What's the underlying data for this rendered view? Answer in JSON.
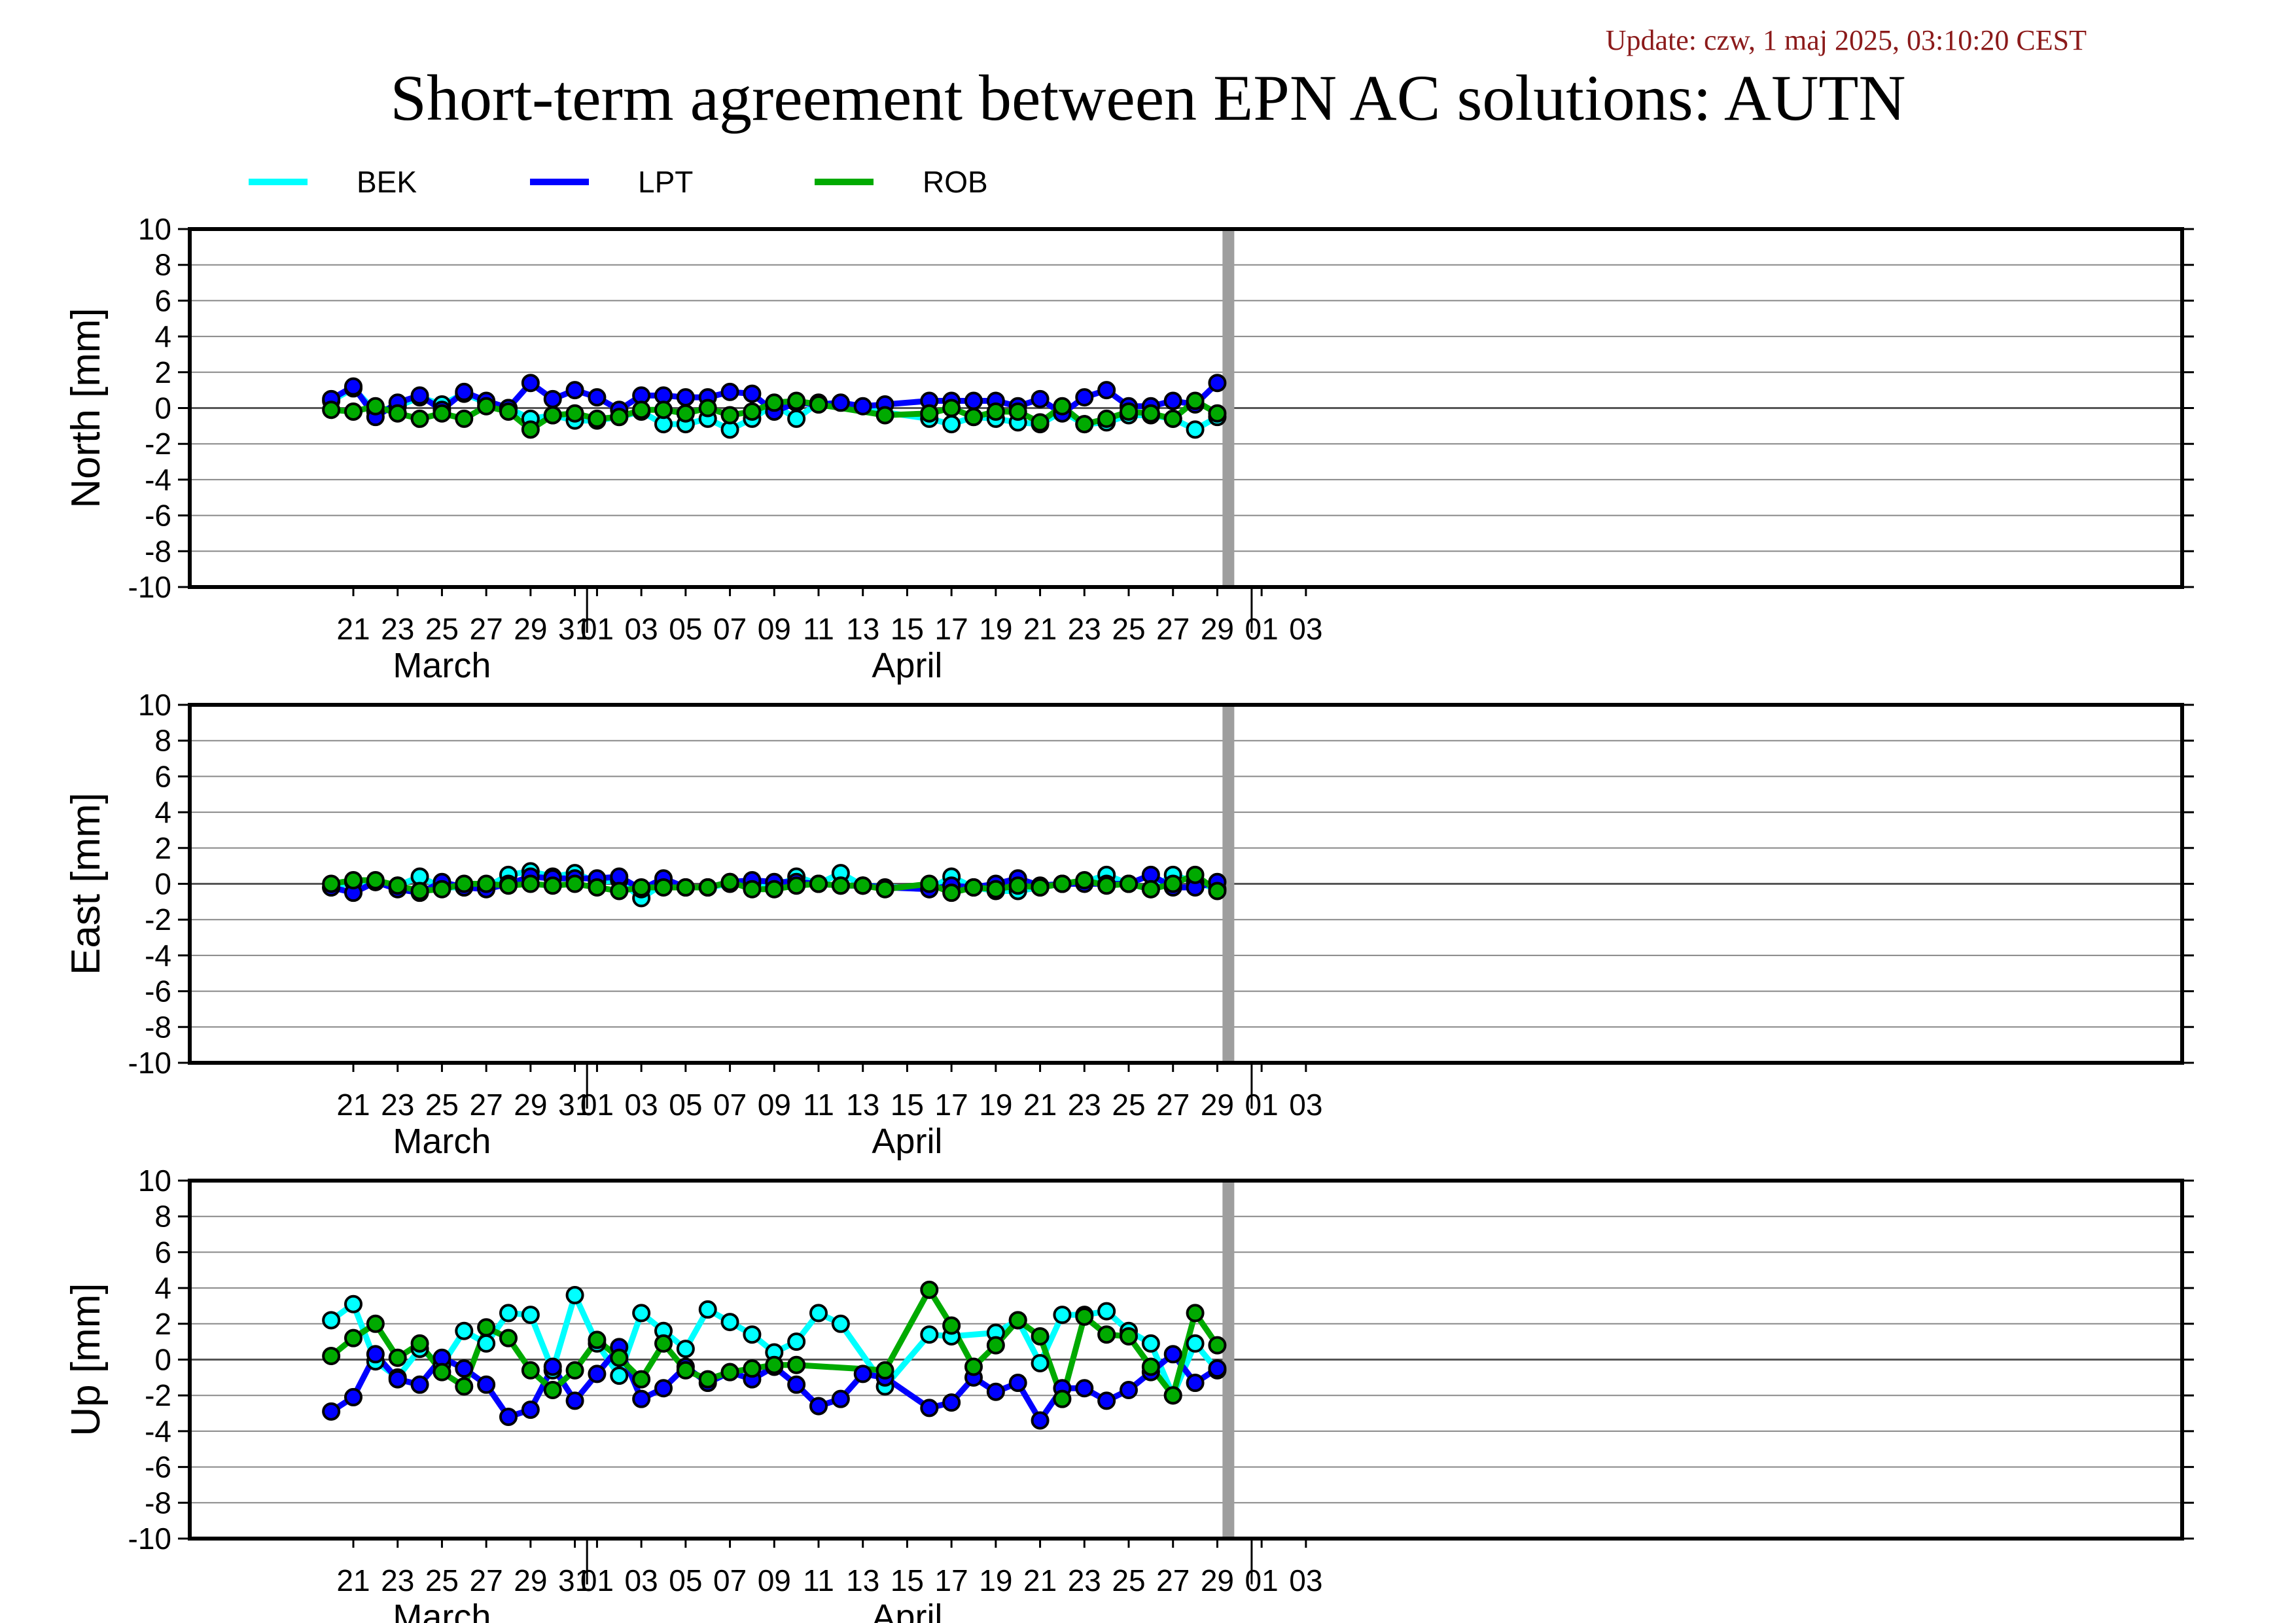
{
  "update_text": "Update: czw, 1 maj 2025, 03:10:20 CEST",
  "title": "Short-term agreement between EPN AC solutions: AUTN",
  "chart_data": {
    "type": "line",
    "legend": [
      {
        "name": "BEK",
        "color": "#00ffff"
      },
      {
        "name": "LPT",
        "color": "#0000ff"
      },
      {
        "name": "ROB",
        "color": "#00aa00"
      }
    ],
    "legend_position": "top-left",
    "x_ticks": [
      "21",
      "23",
      "25",
      "27",
      "29",
      "31",
      "01",
      "03",
      "05",
      "07",
      "09",
      "11",
      "13",
      "15",
      "17",
      "19",
      "21",
      "23",
      "25",
      "27",
      "29",
      "01",
      "03"
    ],
    "months": [
      "March",
      "April"
    ],
    "ylim": [
      -10,
      10
    ],
    "y_ticks": [
      "10",
      "8",
      "6",
      "4",
      "2",
      "0",
      "-2",
      "-4",
      "-6",
      "-8",
      "-10"
    ],
    "grid": true,
    "today_marker": "29",
    "panels": [
      {
        "ylabel": "North [mm]",
        "series": [
          {
            "name": "BEK",
            "x": [
              "03-20",
              "03-21",
              "03-22",
              "03-23",
              "03-24",
              "03-25",
              "03-26",
              "03-27",
              "03-28",
              "03-29",
              "03-30",
              "03-31",
              "04-01",
              "04-02",
              "04-03",
              "04-04",
              "04-05",
              "04-06",
              "04-07",
              "04-08",
              "04-09",
              "04-10",
              "04-11",
              "04-16",
              "04-17",
              "04-18",
              "04-19",
              "04-20",
              "04-21",
              "04-22",
              "04-23",
              "04-24",
              "04-25",
              "04-26",
              "04-27",
              "04-28",
              "04-29"
            ],
            "y": [
              0.4,
              1.1,
              -0.2,
              0.1,
              0.6,
              0.2,
              0.8,
              0.3,
              0.0,
              -0.6,
              -0.4,
              -0.7,
              -0.7,
              -0.5,
              -0.2,
              -0.9,
              -0.9,
              -0.6,
              -1.2,
              -0.6,
              0.2,
              -0.6,
              0.3,
              -0.6,
              -0.9,
              -0.5,
              -0.6,
              -0.8,
              -0.9,
              -0.2,
              -0.9,
              -0.8,
              -0.4,
              -0.4,
              -0.6,
              -1.2,
              -0.5
            ]
          },
          {
            "name": "LPT",
            "x": [
              "03-20",
              "03-21",
              "03-22",
              "03-23",
              "03-24",
              "03-25",
              "03-26",
              "03-27",
              "03-28",
              "03-29",
              "03-30",
              "03-31",
              "04-01",
              "04-02",
              "04-03",
              "04-04",
              "04-05",
              "04-06",
              "04-07",
              "04-08",
              "04-09",
              "04-10",
              "04-11",
              "04-12",
              "04-13",
              "04-14",
              "04-16",
              "04-17",
              "04-18",
              "04-19",
              "04-20",
              "04-21",
              "04-22",
              "04-23",
              "04-24",
              "04-25",
              "04-26",
              "04-27",
              "04-28",
              "04-29"
            ],
            "y": [
              0.5,
              1.2,
              -0.5,
              0.3,
              0.7,
              -0.1,
              0.9,
              0.4,
              0.0,
              1.4,
              0.5,
              1.0,
              0.6,
              -0.1,
              0.7,
              0.7,
              0.6,
              0.6,
              0.9,
              0.8,
              -0.2,
              0.3,
              0.2,
              0.3,
              0.1,
              0.2,
              0.4,
              0.4,
              0.4,
              0.4,
              0.1,
              0.5,
              -0.3,
              0.6,
              1.0,
              0.1,
              0.1,
              0.4,
              0.2,
              1.4
            ]
          },
          {
            "name": "ROB",
            "x": [
              "03-20",
              "03-21",
              "03-22",
              "03-23",
              "03-24",
              "03-25",
              "03-26",
              "03-27",
              "03-28",
              "03-29",
              "03-30",
              "03-31",
              "04-01",
              "04-02",
              "04-03",
              "04-04",
              "04-05",
              "04-06",
              "04-07",
              "04-08",
              "04-09",
              "04-10",
              "04-11",
              "04-14",
              "04-16",
              "04-17",
              "04-18",
              "04-19",
              "04-20",
              "04-21",
              "04-22",
              "04-23",
              "04-24",
              "04-25",
              "04-26",
              "04-27",
              "04-28",
              "04-29"
            ],
            "y": [
              -0.1,
              -0.2,
              0.1,
              -0.3,
              -0.6,
              -0.3,
              -0.6,
              0.1,
              -0.2,
              -1.2,
              -0.4,
              -0.3,
              -0.6,
              -0.5,
              -0.1,
              -0.1,
              -0.3,
              0.0,
              -0.4,
              -0.2,
              0.3,
              0.4,
              0.2,
              -0.4,
              -0.3,
              0.0,
              -0.5,
              -0.2,
              -0.2,
              -0.8,
              0.1,
              -0.9,
              -0.6,
              -0.2,
              -0.3,
              -0.6,
              0.4,
              -0.3
            ]
          }
        ]
      },
      {
        "ylabel": "East [mm]",
        "series": [
          {
            "name": "BEK",
            "x": [
              "03-20",
              "03-21",
              "03-22",
              "03-23",
              "03-24",
              "03-25",
              "03-26",
              "03-27",
              "03-28",
              "03-29",
              "03-30",
              "03-31",
              "04-01",
              "04-02",
              "04-03",
              "04-04",
              "04-05",
              "04-06",
              "04-07",
              "04-08",
              "04-09",
              "04-10",
              "04-11",
              "04-12",
              "04-13",
              "04-16",
              "04-17",
              "04-18",
              "04-19",
              "04-20",
              "04-21",
              "04-22",
              "04-23",
              "04-24",
              "04-25",
              "04-26",
              "04-27",
              "04-28",
              "04-29"
            ],
            "y": [
              -0.2,
              0.1,
              0.1,
              -0.1,
              0.4,
              -0.2,
              -0.2,
              -0.2,
              0.5,
              0.7,
              0.4,
              0.6,
              0.1,
              0.2,
              -0.8,
              0.0,
              -0.2,
              -0.2,
              0.0,
              0.0,
              -0.2,
              0.4,
              0.0,
              0.6,
              -0.1,
              -0.3,
              0.4,
              -0.2,
              -0.4,
              -0.4,
              -0.2,
              0.0,
              0.1,
              0.5,
              0.0,
              -0.3,
              0.5,
              0.1,
              -0.3
            ]
          },
          {
            "name": "LPT",
            "x": [
              "03-20",
              "03-21",
              "03-22",
              "03-23",
              "03-24",
              "03-25",
              "03-26",
              "03-27",
              "03-28",
              "03-29",
              "03-30",
              "03-31",
              "04-01",
              "04-02",
              "04-03",
              "04-04",
              "04-05",
              "04-06",
              "04-07",
              "04-08",
              "04-09",
              "04-10",
              "04-11",
              "04-12",
              "04-13",
              "04-14",
              "04-16",
              "04-17",
              "04-18",
              "04-19",
              "04-20",
              "04-21",
              "04-22",
              "04-23",
              "04-24",
              "04-25",
              "04-26",
              "04-27",
              "04-28",
              "04-29"
            ],
            "y": [
              -0.2,
              -0.5,
              0.1,
              -0.3,
              -0.5,
              0.1,
              -0.2,
              -0.3,
              0.0,
              0.4,
              0.3,
              0.3,
              0.3,
              0.4,
              -0.3,
              0.3,
              -0.2,
              -0.2,
              0.1,
              0.2,
              0.1,
              0.1,
              0.0,
              -0.1,
              -0.1,
              -0.2,
              -0.3,
              -0.1,
              -0.2,
              0.0,
              0.3,
              -0.1,
              0.0,
              0.0,
              0.0,
              0.0,
              0.5,
              -0.2,
              -0.2,
              0.1
            ]
          },
          {
            "name": "ROB",
            "x": [
              "03-20",
              "03-21",
              "03-22",
              "03-23",
              "03-24",
              "03-25",
              "03-26",
              "03-27",
              "03-28",
              "03-29",
              "03-30",
              "03-31",
              "04-01",
              "04-02",
              "04-03",
              "04-04",
              "04-05",
              "04-06",
              "04-07",
              "04-08",
              "04-09",
              "04-10",
              "04-11",
              "04-12",
              "04-13",
              "04-14",
              "04-16",
              "04-17",
              "04-18",
              "04-19",
              "04-20",
              "04-21",
              "04-22",
              "04-23",
              "04-24",
              "04-25",
              "04-26",
              "04-27",
              "04-28",
              "04-29"
            ],
            "y": [
              0.0,
              0.2,
              0.2,
              -0.1,
              -0.4,
              -0.3,
              0.0,
              0.0,
              -0.1,
              0.0,
              -0.1,
              0.0,
              -0.2,
              -0.4,
              -0.2,
              -0.2,
              -0.2,
              -0.2,
              0.1,
              -0.3,
              -0.3,
              -0.1,
              0.0,
              -0.1,
              -0.1,
              -0.3,
              0.0,
              -0.5,
              -0.2,
              -0.3,
              -0.1,
              -0.2,
              0.0,
              0.2,
              -0.1,
              0.0,
              -0.3,
              0.0,
              0.5,
              -0.4
            ]
          }
        ]
      },
      {
        "ylabel": "Up [mm]",
        "series": [
          {
            "name": "BEK",
            "x": [
              "03-20",
              "03-21",
              "03-22",
              "03-23",
              "03-24",
              "03-25",
              "03-26",
              "03-27",
              "03-28",
              "03-29",
              "03-30",
              "03-31",
              "04-01",
              "04-02",
              "04-03",
              "04-04",
              "04-05",
              "04-06",
              "04-07",
              "04-08",
              "04-09",
              "04-10",
              "04-11",
              "04-12",
              "04-14",
              "04-16",
              "04-17",
              "04-19",
              "04-20",
              "04-21",
              "04-22",
              "04-23",
              "04-24",
              "04-25",
              "04-26",
              "04-27",
              "04-28",
              "04-29"
            ],
            "y": [
              2.2,
              3.1,
              -0.1,
              -1.0,
              0.6,
              -0.3,
              1.6,
              0.9,
              2.6,
              2.5,
              -0.6,
              3.6,
              0.9,
              -0.9,
              2.6,
              1.6,
              0.6,
              2.8,
              2.1,
              1.4,
              0.4,
              1.0,
              2.6,
              2.0,
              -1.5,
              1.4,
              1.3,
              1.5,
              2.2,
              -0.2,
              2.5,
              2.5,
              2.7,
              1.6,
              0.9,
              -2.0,
              0.9,
              -0.6
            ]
          },
          {
            "name": "LPT",
            "x": [
              "03-20",
              "03-21",
              "03-22",
              "03-23",
              "03-24",
              "03-25",
              "03-26",
              "03-27",
              "03-28",
              "03-29",
              "03-30",
              "03-31",
              "04-01",
              "04-02",
              "04-03",
              "04-04",
              "04-05",
              "04-06",
              "04-07",
              "04-08",
              "04-09",
              "04-10",
              "04-11",
              "04-12",
              "04-13",
              "04-14",
              "04-16",
              "04-17",
              "04-18",
              "04-19",
              "04-20",
              "04-21",
              "04-22",
              "04-23",
              "04-24",
              "04-25",
              "04-26",
              "04-27",
              "04-28",
              "04-29"
            ],
            "y": [
              -2.9,
              -2.1,
              0.3,
              -1.1,
              -1.4,
              0.1,
              -0.5,
              -1.4,
              -3.2,
              -2.8,
              -0.4,
              -2.3,
              -0.8,
              0.7,
              -2.2,
              -1.6,
              -0.4,
              -1.3,
              -0.7,
              -1.1,
              -0.4,
              -1.4,
              -2.6,
              -2.2,
              -0.8,
              -1.0,
              -2.7,
              -2.4,
              -1.0,
              -1.8,
              -1.3,
              -3.4,
              -1.6,
              -1.6,
              -2.3,
              -1.7,
              -0.7,
              0.3,
              -1.3,
              -0.5
            ]
          },
          {
            "name": "ROB",
            "x": [
              "03-20",
              "03-21",
              "03-22",
              "03-23",
              "03-24",
              "03-25",
              "03-26",
              "03-27",
              "03-28",
              "03-29",
              "03-30",
              "03-31",
              "04-01",
              "04-02",
              "04-03",
              "04-04",
              "04-05",
              "04-06",
              "04-07",
              "04-08",
              "04-09",
              "04-10",
              "04-14",
              "04-16",
              "04-17",
              "04-18",
              "04-19",
              "04-20",
              "04-21",
              "04-22",
              "04-23",
              "04-24",
              "04-25",
              "04-26",
              "04-27",
              "04-28",
              "04-29"
            ],
            "y": [
              0.2,
              1.2,
              2.0,
              0.1,
              0.9,
              -0.7,
              -1.5,
              1.8,
              1.2,
              -0.6,
              -1.7,
              -0.6,
              1.1,
              0.1,
              -1.1,
              0.9,
              -0.6,
              -1.1,
              -0.7,
              -0.5,
              -0.3,
              -0.3,
              -0.6,
              3.9,
              1.9,
              -0.4,
              0.8,
              2.2,
              1.3,
              -2.2,
              2.4,
              1.4,
              1.3,
              -0.4,
              -2.0,
              2.6,
              0.8
            ]
          }
        ]
      }
    ]
  }
}
